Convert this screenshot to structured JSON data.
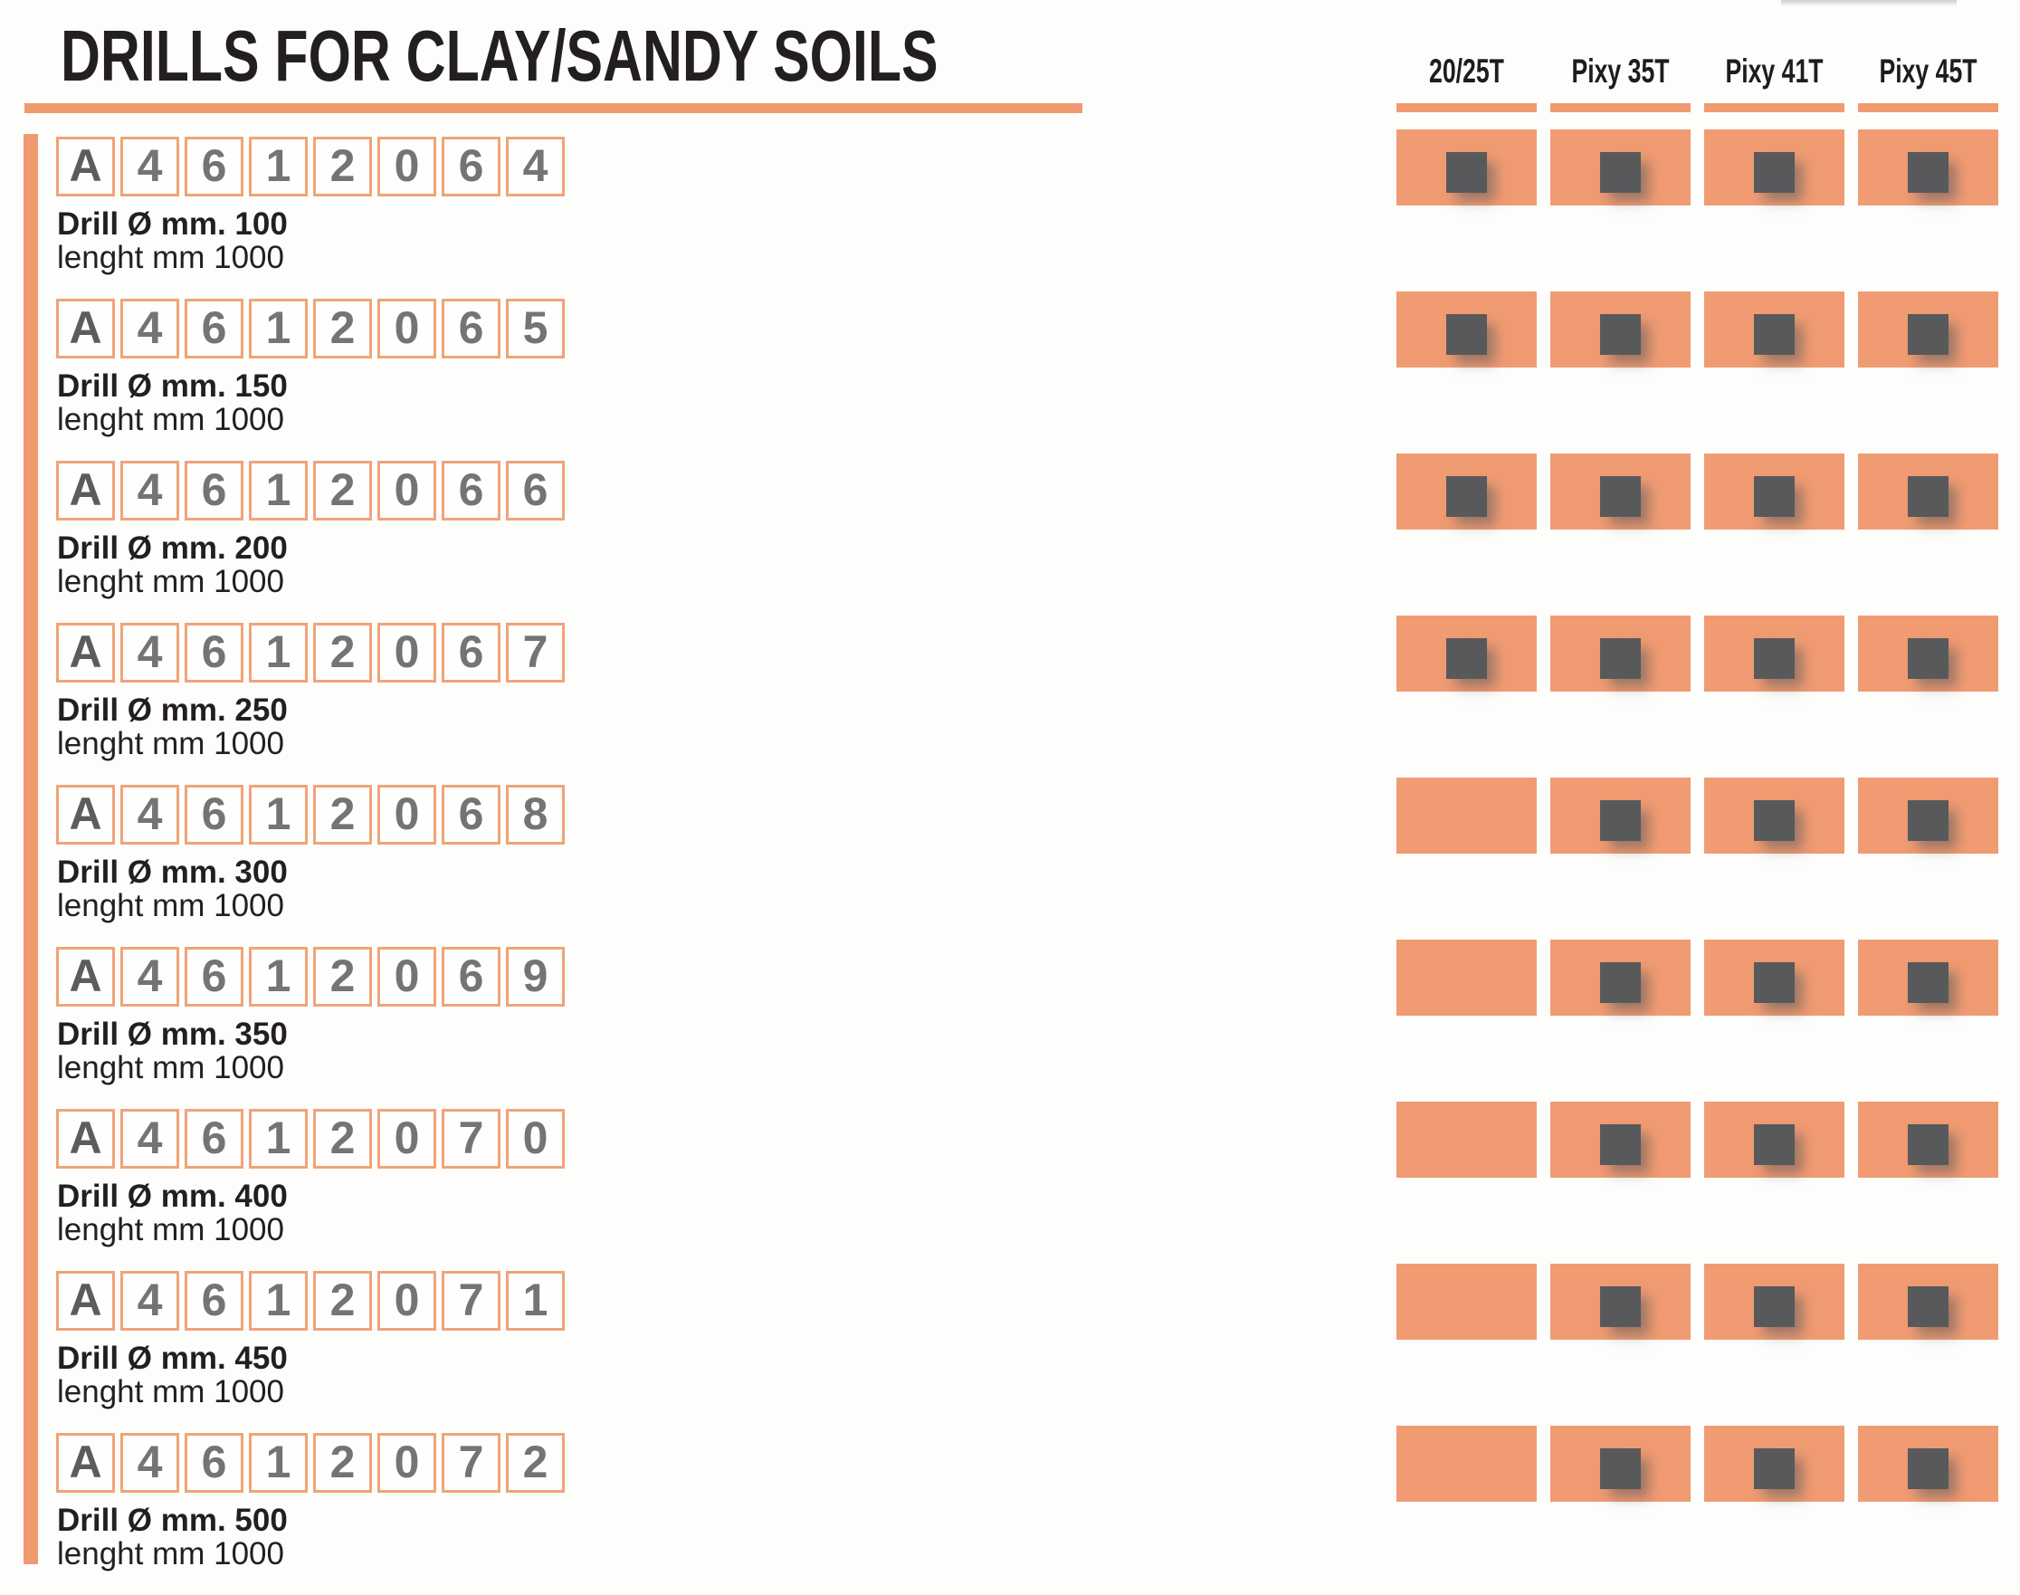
{
  "title": "DRILLS FOR CLAY/SANDY SOILS",
  "columns": [
    "20/25T",
    "Pixy 35T",
    "Pixy 41T",
    "Pixy 45T"
  ],
  "products": [
    {
      "code": "A4612064",
      "name": "Drill Ø mm. 100",
      "length": "lenght mm 1000",
      "compat": [
        true,
        true,
        true,
        true
      ]
    },
    {
      "code": "A4612065",
      "name": "Drill Ø mm. 150",
      "length": "lenght mm 1000",
      "compat": [
        true,
        true,
        true,
        true
      ]
    },
    {
      "code": "A4612066",
      "name": "Drill Ø mm. 200",
      "length": "lenght mm 1000",
      "compat": [
        true,
        true,
        true,
        true
      ]
    },
    {
      "code": "A4612067",
      "name": "Drill Ø mm. 250",
      "length": "lenght mm 1000",
      "compat": [
        true,
        true,
        true,
        true
      ]
    },
    {
      "code": "A4612068",
      "name": "Drill Ø mm. 300",
      "length": "lenght mm 1000",
      "compat": [
        false,
        true,
        true,
        true
      ]
    },
    {
      "code": "A4612069",
      "name": "Drill Ø mm. 350",
      "length": "lenght mm 1000",
      "compat": [
        false,
        true,
        true,
        true
      ]
    },
    {
      "code": "A4612070",
      "name": "Drill Ø mm. 400",
      "length": "lenght mm 1000",
      "compat": [
        false,
        true,
        true,
        true
      ]
    },
    {
      "code": "A4612071",
      "name": "Drill Ø mm. 450",
      "length": "lenght mm 1000",
      "compat": [
        false,
        true,
        true,
        true
      ]
    },
    {
      "code": "A4612072",
      "name": "Drill Ø mm. 500",
      "length": "lenght mm 1000",
      "compat": [
        false,
        true,
        true,
        true
      ]
    }
  ],
  "colors": {
    "accent": "#F09A70",
    "cell_fill": "#F19B72",
    "box_border": "#F0A478",
    "square": "#58595B",
    "text": "#231F20",
    "code_letter": "#5B5C5E",
    "code_digit": "#737476"
  }
}
